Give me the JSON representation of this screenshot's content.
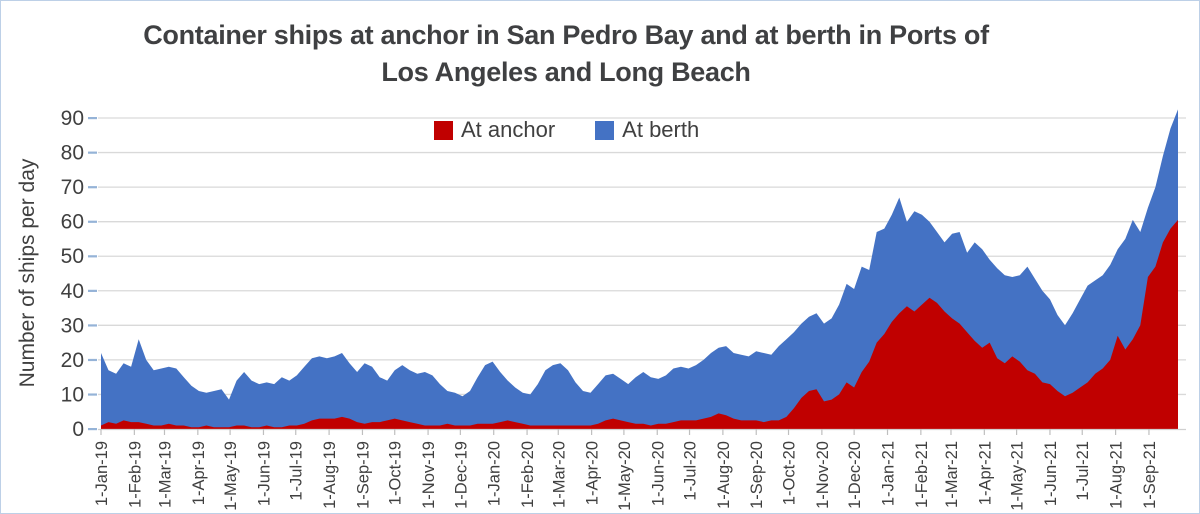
{
  "title": {
    "line1": "Container ships at anchor in San Pedro Bay and at berth in Ports of",
    "line2": "Los Angeles and Long Beach"
  },
  "y_axis": {
    "label": "Number of ships per day",
    "ticks": [
      0,
      10,
      20,
      30,
      40,
      50,
      60,
      70,
      80,
      90
    ]
  },
  "legend": [
    {
      "label": "At anchor",
      "color": "#C00000"
    },
    {
      "label": "At berth",
      "color": "#4472C4"
    }
  ],
  "colors": {
    "anchor": "#C00000",
    "berth": "#4472C4",
    "gridline": "#D9D9D9",
    "baseline": "#D0D0D0",
    "x_tick": "#BFBFBF",
    "y_tick": "#95B3D7",
    "text": "#404040",
    "title": "#3F4042",
    "border": "#BDD0E7"
  },
  "chart_data": {
    "type": "area",
    "stacked": true,
    "title": "Container ships at anchor in San Pedro Bay and at berth in Ports of Los Angeles and Long Beach",
    "xlabel": "",
    "ylabel": "Number of ships per day",
    "ylim": [
      0,
      90
    ],
    "grid": "horizontal",
    "legend_position": "top-center-inside",
    "x_unit": "date",
    "x_range": [
      "1-Jan-19",
      "late Sep 2021"
    ],
    "sampling": "weekly (values read from chart, ships per day)",
    "x_tick_labels": [
      "1-Jan-19",
      "1-Feb-19",
      "1-Mar-19",
      "1-Apr-19",
      "1-May-19",
      "1-Jun-19",
      "1-Jul-19",
      "1-Aug-19",
      "1-Sep-19",
      "1-Oct-19",
      "1-Nov-19",
      "1-Dec-19",
      "1-Jan-20",
      "1-Feb-20",
      "1-Mar-20",
      "1-Apr-20",
      "1-May-20",
      "1-Jun-20",
      "1-Jul-20",
      "1-Aug-20",
      "1-Sep-20",
      "1-Oct-20",
      "1-Nov-20",
      "1-Dec-20",
      "1-Jan-21",
      "1-Feb-21",
      "1-Mar-21",
      "1-Apr-21",
      "1-May-21",
      "1-Jun-21",
      "1-Jul-21",
      "1-Aug-21",
      "1-Sep-21"
    ],
    "x_tick_day_offsets": [
      0,
      31,
      59,
      90,
      120,
      151,
      181,
      212,
      243,
      273,
      304,
      334,
      365,
      396,
      425,
      456,
      486,
      517,
      547,
      578,
      609,
      639,
      670,
      700,
      731,
      762,
      790,
      821,
      851,
      882,
      912,
      943,
      974
    ],
    "total_days": 1001,
    "series": [
      {
        "name": "At anchor",
        "color": "#C00000",
        "values": [
          1,
          2,
          1.5,
          2.5,
          2,
          2,
          1.5,
          1,
          1,
          1.5,
          1,
          1,
          0.5,
          0.5,
          1,
          0.5,
          0.5,
          0.5,
          1,
          1,
          0.5,
          0.5,
          1,
          0.5,
          0.5,
          1,
          1,
          1.5,
          2.5,
          3,
          3,
          3,
          3.5,
          3,
          2,
          1.5,
          2,
          2,
          2.5,
          3,
          2.5,
          2,
          1.5,
          1,
          1,
          1,
          1.5,
          1,
          1,
          1,
          1.5,
          1.5,
          1.5,
          2,
          2.5,
          2,
          1.5,
          1,
          1,
          1,
          1,
          1,
          1,
          1,
          1,
          1,
          1.5,
          2.5,
          3,
          2.5,
          2,
          1.5,
          1.5,
          1,
          1.5,
          1.5,
          2,
          2.5,
          2.5,
          2.5,
          3,
          3.5,
          4.5,
          4,
          3,
          2.5,
          2.5,
          2.5,
          2,
          2.5,
          2.5,
          3.5,
          6,
          9,
          11,
          11.5,
          8,
          8.5,
          10,
          13.5,
          12,
          16.5,
          19.5,
          25,
          27.5,
          31,
          33.5,
          35.5,
          34,
          36,
          38,
          36.5,
          34,
          32,
          30.5,
          28,
          25.5,
          23.5,
          25,
          20.5,
          19,
          21,
          19.5,
          17,
          16,
          13.5,
          13,
          11,
          9.5,
          10.5,
          12,
          13.5,
          16,
          17.5,
          20,
          27,
          23,
          26,
          30,
          44,
          47,
          54,
          58,
          60.5
        ]
      },
      {
        "name": "At berth",
        "color": "#4472C4",
        "values": [
          21,
          15,
          14.5,
          16.5,
          16,
          24,
          18.5,
          16,
          16.5,
          16.5,
          16.5,
          14,
          12,
          10.5,
          9.5,
          10.5,
          11,
          8,
          13,
          15.5,
          13.5,
          12.5,
          12.5,
          12.5,
          14.5,
          13,
          14.5,
          16.5,
          18,
          18,
          17.5,
          18,
          18.5,
          16,
          14.5,
          17.5,
          16,
          13,
          11.5,
          14,
          16,
          15,
          14.5,
          15.5,
          14.5,
          12,
          9.5,
          9.5,
          8.5,
          10,
          13.5,
          17,
          18,
          14.5,
          11.5,
          10,
          9,
          9,
          12,
          16,
          17.5,
          18,
          16,
          12.5,
          10,
          9.5,
          11.5,
          13,
          13,
          12,
          11,
          13.5,
          15,
          14,
          13,
          14,
          15.5,
          15.5,
          15,
          16,
          17,
          18.5,
          19,
          20,
          19,
          19,
          18.5,
          20,
          20,
          19,
          21.5,
          22.5,
          22,
          21.5,
          21.5,
          22,
          22.5,
          23.5,
          26,
          28.5,
          28.5,
          30.5,
          26.5,
          32,
          30.5,
          31,
          33.5,
          24.5,
          29,
          26,
          22,
          20.5,
          20,
          24.5,
          26.5,
          23,
          28.5,
          28.5,
          24,
          26,
          25.5,
          23,
          25,
          30,
          27.5,
          26.5,
          24.5,
          22,
          20.5,
          23,
          25.5,
          28,
          27,
          27,
          27.5,
          25,
          32,
          34.5,
          27,
          20,
          23,
          25,
          29,
          32
        ]
      }
    ]
  }
}
